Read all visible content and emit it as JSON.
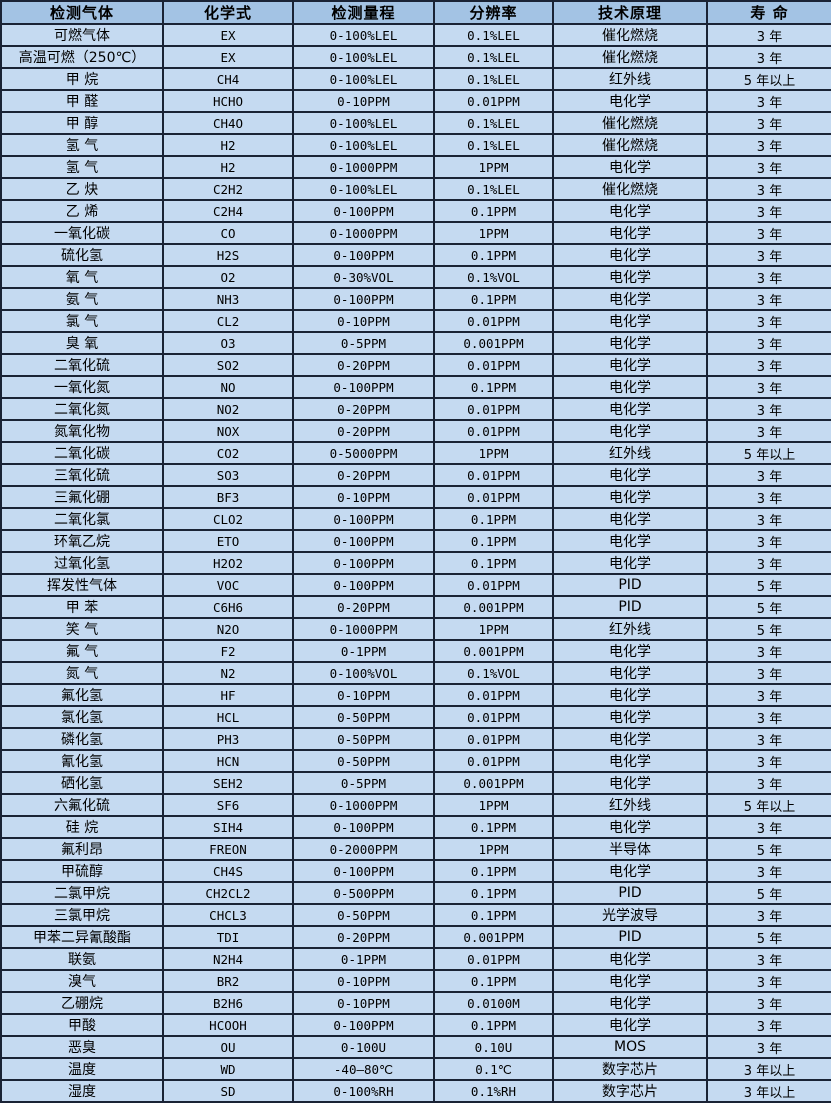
{
  "colors": {
    "header_bg": "#a3c3e4",
    "row_bg": "#c5daf1",
    "border": "#1a2335",
    "text": "#000000"
  },
  "table": {
    "columns": [
      "检测气体",
      "化学式",
      "检测量程",
      "分辨率",
      "技术原理",
      "寿 命"
    ],
    "rows": [
      {
        "gas": "可燃气体",
        "formula": "EX",
        "range": "0-100%LEL",
        "resolution": "0.1%LEL",
        "principle": "催化燃烧",
        "life": "3 年"
      },
      {
        "gas": "高温可燃（250℃）",
        "formula": "EX",
        "range": "0-100%LEL",
        "resolution": "0.1%LEL",
        "principle": "催化燃烧",
        "life": "3 年"
      },
      {
        "gas": "甲 烷",
        "formula": "CH4",
        "range": "0-100%LEL",
        "resolution": "0.1%LEL",
        "principle": "红外线",
        "life": "5 年以上"
      },
      {
        "gas": "甲 醛",
        "formula": "HCHO",
        "range": "0-10PPM",
        "resolution": "0.01PPM",
        "principle": "电化学",
        "life": "3 年"
      },
      {
        "gas": "甲 醇",
        "formula": "CH4O",
        "range": "0-100%LEL",
        "resolution": "0.1%LEL",
        "principle": "催化燃烧",
        "life": "3 年"
      },
      {
        "gas": "氢 气",
        "formula": "H2",
        "range": "0-100%LEL",
        "resolution": "0.1%LEL",
        "principle": "催化燃烧",
        "life": "3 年"
      },
      {
        "gas": "氢 气",
        "formula": "H2",
        "range": "0-1000PPM",
        "resolution": "1PPM",
        "principle": "电化学",
        "life": "3 年"
      },
      {
        "gas": "乙 炔",
        "formula": "C2H2",
        "range": "0-100%LEL",
        "resolution": "0.1%LEL",
        "principle": "催化燃烧",
        "life": "3 年"
      },
      {
        "gas": "乙 烯",
        "formula": "C2H4",
        "range": "0-100PPM",
        "resolution": "0.1PPM",
        "principle": "电化学",
        "life": "3 年"
      },
      {
        "gas": "一氧化碳",
        "formula": "CO",
        "range": "0-1000PPM",
        "resolution": "1PPM",
        "principle": "电化学",
        "life": "3 年"
      },
      {
        "gas": "硫化氢",
        "formula": "H2S",
        "range": "0-100PPM",
        "resolution": "0.1PPM",
        "principle": "电化学",
        "life": "3 年"
      },
      {
        "gas": "氧 气",
        "formula": "O2",
        "range": "0-30%VOL",
        "resolution": "0.1%VOL",
        "principle": "电化学",
        "life": "3 年"
      },
      {
        "gas": "氨 气",
        "formula": "NH3",
        "range": "0-100PPM",
        "resolution": "0.1PPM",
        "principle": "电化学",
        "life": "3 年"
      },
      {
        "gas": "氯 气",
        "formula": "CL2",
        "range": "0-10PPM",
        "resolution": "0.01PPM",
        "principle": "电化学",
        "life": "3 年"
      },
      {
        "gas": "臭 氧",
        "formula": "O3",
        "range": "0-5PPM",
        "resolution": "0.001PPM",
        "principle": "电化学",
        "life": "3 年"
      },
      {
        "gas": "二氧化硫",
        "formula": "SO2",
        "range": "0-20PPM",
        "resolution": "0.01PPM",
        "principle": "电化学",
        "life": "3 年"
      },
      {
        "gas": "一氧化氮",
        "formula": "NO",
        "range": "0-100PPM",
        "resolution": "0.1PPM",
        "principle": "电化学",
        "life": "3 年"
      },
      {
        "gas": "二氧化氮",
        "formula": "NO2",
        "range": "0-20PPM",
        "resolution": "0.01PPM",
        "principle": "电化学",
        "life": "3 年"
      },
      {
        "gas": "氮氧化物",
        "formula": "NOX",
        "range": "0-20PPM",
        "resolution": "0.01PPM",
        "principle": "电化学",
        "life": "3 年"
      },
      {
        "gas": "二氧化碳",
        "formula": "CO2",
        "range": "0-5000PPM",
        "resolution": "1PPM",
        "principle": "红外线",
        "life": "5 年以上"
      },
      {
        "gas": "三氧化硫",
        "formula": "SO3",
        "range": "0-20PPM",
        "resolution": "0.01PPM",
        "principle": "电化学",
        "life": "3 年"
      },
      {
        "gas": "三氟化硼",
        "formula": "BF3",
        "range": "0-10PPM",
        "resolution": "0.01PPM",
        "principle": "电化学",
        "life": "3 年"
      },
      {
        "gas": "二氧化氯",
        "formula": "CLO2",
        "range": "0-100PPM",
        "resolution": "0.1PPM",
        "principle": "电化学",
        "life": "3 年"
      },
      {
        "gas": "环氧乙烷",
        "formula": "ETO",
        "range": "0-100PPM",
        "resolution": "0.1PPM",
        "principle": "电化学",
        "life": "3 年"
      },
      {
        "gas": "过氧化氢",
        "formula": "H2O2",
        "range": "0-100PPM",
        "resolution": "0.1PPM",
        "principle": "电化学",
        "life": "3 年"
      },
      {
        "gas": "挥发性气体",
        "formula": "VOC",
        "range": "0-100PPM",
        "resolution": "0.01PPM",
        "principle": "PID",
        "life": "5 年"
      },
      {
        "gas": "甲 苯",
        "formula": "C6H6",
        "range": "0-20PPM",
        "resolution": "0.001PPM",
        "principle": "PID",
        "life": "5 年"
      },
      {
        "gas": "笑 气",
        "formula": "N2O",
        "range": "0-1000PPM",
        "resolution": "1PPM",
        "principle": "红外线",
        "life": "5 年"
      },
      {
        "gas": "氟 气",
        "formula": "F2",
        "range": "0-1PPM",
        "resolution": "0.001PPM",
        "principle": "电化学",
        "life": "3 年"
      },
      {
        "gas": "氮 气",
        "formula": "N2",
        "range": "0-100%VOL",
        "resolution": "0.1%VOL",
        "principle": "电化学",
        "life": "3 年"
      },
      {
        "gas": "氟化氢",
        "formula": "HF",
        "range": "0-10PPM",
        "resolution": "0.01PPM",
        "principle": "电化学",
        "life": "3 年"
      },
      {
        "gas": "氯化氢",
        "formula": "HCL",
        "range": "0-50PPM",
        "resolution": "0.01PPM",
        "principle": "电化学",
        "life": "3 年"
      },
      {
        "gas": "磷化氢",
        "formula": "PH3",
        "range": "0-50PPM",
        "resolution": "0.01PPM",
        "principle": "电化学",
        "life": "3 年"
      },
      {
        "gas": "氰化氢",
        "formula": "HCN",
        "range": "0-50PPM",
        "resolution": "0.01PPM",
        "principle": "电化学",
        "life": "3 年"
      },
      {
        "gas": "硒化氢",
        "formula": "SEH2",
        "range": "0-5PPM",
        "resolution": "0.001PPM",
        "principle": "电化学",
        "life": "3 年"
      },
      {
        "gas": "六氟化硫",
        "formula": "SF6",
        "range": "0-1000PPM",
        "resolution": "1PPM",
        "principle": "红外线",
        "life": "5 年以上"
      },
      {
        "gas": "硅 烷",
        "formula": "SIH4",
        "range": "0-100PPM",
        "resolution": "0.1PPM",
        "principle": "电化学",
        "life": "3 年"
      },
      {
        "gas": "氟利昂",
        "formula": "FREON",
        "range": "0-2000PPM",
        "resolution": "1PPM",
        "principle": "半导体",
        "life": "5 年"
      },
      {
        "gas": "甲硫醇",
        "formula": "CH4S",
        "range": "0-100PPM",
        "resolution": "0.1PPM",
        "principle": "电化学",
        "life": "3 年"
      },
      {
        "gas": "二氯甲烷",
        "formula": "CH2CL2",
        "range": "0-500PPM",
        "resolution": "0.1PPM",
        "principle": "PID",
        "life": "5 年"
      },
      {
        "gas": "三氯甲烷",
        "formula": "CHCL3",
        "range": "0-50PPM",
        "resolution": "0.1PPM",
        "principle": "光学波导",
        "life": "3 年"
      },
      {
        "gas": "甲苯二异氰酸酯",
        "formula": "TDI",
        "range": "0-20PPM",
        "resolution": "0.001PPM",
        "principle": "PID",
        "life": "5 年"
      },
      {
        "gas": "联氨",
        "formula": "N2H4",
        "range": "0-1PPM",
        "resolution": "0.01PPM",
        "principle": "电化学",
        "life": "3 年"
      },
      {
        "gas": "溴气",
        "formula": "BR2",
        "range": "0-10PPM",
        "resolution": "0.1PPM",
        "principle": "电化学",
        "life": "3 年"
      },
      {
        "gas": "乙硼烷",
        "formula": "B2H6",
        "range": "0-10PPM",
        "resolution": "0.0100M",
        "principle": "电化学",
        "life": "3 年"
      },
      {
        "gas": "甲酸",
        "formula": "HCOOH",
        "range": "0-100PPM",
        "resolution": "0.1PPM",
        "principle": "电化学",
        "life": "3 年"
      },
      {
        "gas": "恶臭",
        "formula": "OU",
        "range": "0-100U",
        "resolution": "0.10U",
        "principle": "MOS",
        "life": "3 年"
      },
      {
        "gas": "温度",
        "formula": "WD",
        "range": "-40—80℃",
        "resolution": "0.1℃",
        "principle": "数字芯片",
        "life": "3 年以上"
      },
      {
        "gas": "湿度",
        "formula": "SD",
        "range": "0-100%RH",
        "resolution": "0.1%RH",
        "principle": "数字芯片",
        "life": "3 年以上"
      }
    ]
  }
}
